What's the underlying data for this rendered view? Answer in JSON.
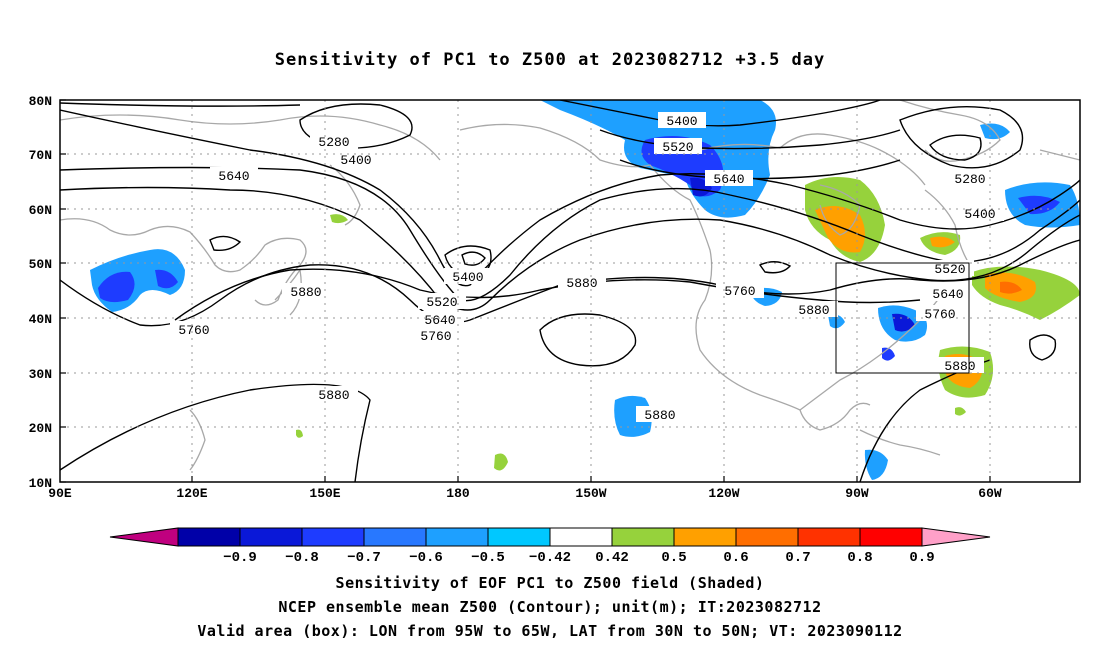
{
  "title": "Sensitivity of PC1 to Z500 at 2023082712 +3.5 day",
  "lat_labels": [
    "80N",
    "70N",
    "60N",
    "50N",
    "40N",
    "30N",
    "20N",
    "10N"
  ],
  "lon_labels": [
    "90E",
    "120E",
    "150E",
    "180",
    "150W",
    "120W",
    "90W",
    "60W"
  ],
  "contour_labels": [
    {
      "text": "5400"
    },
    {
      "text": "5520"
    },
    {
      "text": "5640"
    },
    {
      "text": "5280"
    },
    {
      "text": "5400"
    },
    {
      "text": "5640"
    },
    {
      "text": "5400"
    },
    {
      "text": "5520"
    },
    {
      "text": "5640"
    },
    {
      "text": "5760"
    },
    {
      "text": "5880"
    },
    {
      "text": "5880"
    },
    {
      "text": "5760"
    },
    {
      "text": "5880"
    },
    {
      "text": "5280"
    },
    {
      "text": "5400"
    },
    {
      "text": "5520"
    },
    {
      "text": "5640"
    },
    {
      "text": "5760"
    },
    {
      "text": "5880"
    },
    {
      "text": "5880"
    },
    {
      "text": "5760"
    },
    {
      "text": "5880"
    }
  ],
  "colorbar": {
    "labels": [
      "-0.9",
      "-0.8",
      "-0.7",
      "-0.6",
      "-0.5",
      "-0.42",
      "0.42",
      "0.5",
      "0.6",
      "0.7",
      "0.8",
      "0.9"
    ],
    "colors": [
      "#c0007f",
      "#0000a8",
      "#0a18d8",
      "#1e3cff",
      "#2878ff",
      "#1ea0ff",
      "#00c8ff",
      "#ffffff",
      "#96d23c",
      "#ffa000",
      "#ff6e00",
      "#ff3200",
      "#ff0000",
      "#ffa0c8"
    ]
  },
  "captions": [
    "Sensitivity of EOF PC1 to Z500 field (Shaded)",
    "NCEP ensemble mean Z500 (Contour); unit(m); IT:2023082712",
    "Valid area (box): LON from 95W to 65W, LAT from 30N to 50N; VT: 2023090112"
  ]
}
